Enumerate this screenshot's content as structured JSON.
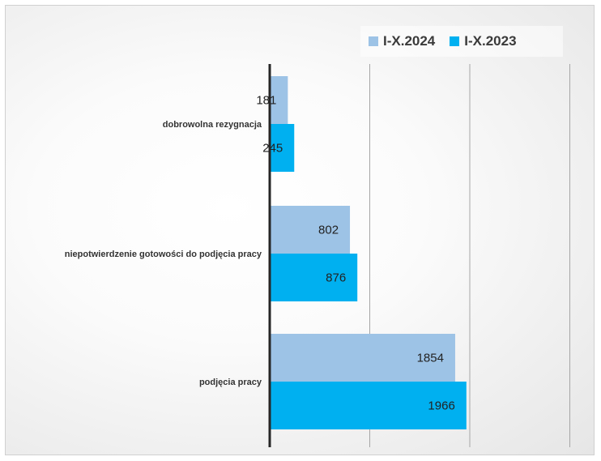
{
  "chart_data": {
    "type": "bar",
    "orientation": "horizontal",
    "categories": [
      "dobrowolna rezygnacja",
      "niepotwierdzenie gotowości do podjęcia pracy",
      "podjęcia pracy"
    ],
    "series": [
      {
        "name": "I-X.2024",
        "color": "#9dc3e6",
        "values": [
          181,
          802,
          1854
        ]
      },
      {
        "name": "I-X.2023",
        "color": "#00b0f0",
        "values": [
          245,
          876,
          1966
        ]
      }
    ],
    "xlim": [
      0,
      3000
    ],
    "grid": "vertical",
    "legend_position": "top-right"
  }
}
